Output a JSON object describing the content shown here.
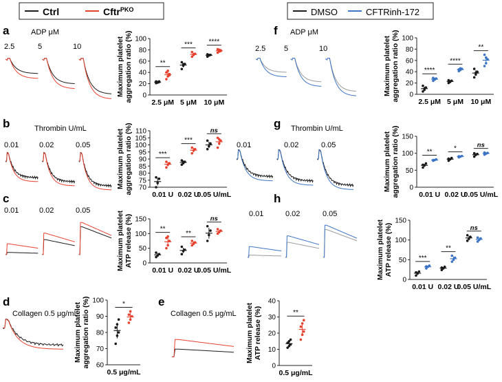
{
  "legends": {
    "left": [
      {
        "label": "Ctrl",
        "sup": "",
        "color": "#1a1a1a"
      },
      {
        "label": "Cftr",
        "sup": "PKO",
        "color": "#e8402e"
      }
    ],
    "right": [
      {
        "label": "DMSO",
        "sup": "",
        "color": "#1a1a1a"
      },
      {
        "label": "CFTRinh-172",
        "sup": "",
        "color": "#3d74c4"
      }
    ]
  },
  "colors": {
    "ctrl": "#1a1a1a",
    "treat_left": "#e8402e",
    "treat_right": "#3d74c4",
    "trace_grey": "#9a9a9a"
  },
  "panels": [
    {
      "letter": "a",
      "trace_title": "ADP μM",
      "trace_labels": [
        "2.5",
        "5",
        "10"
      ],
      "trace_kind": "aggregation",
      "treat_color": "treat_left"
    },
    {
      "letter": "b",
      "trace_title": "Thrombin U/mL",
      "trace_labels": [
        "0.01",
        "0.02",
        "0.05"
      ],
      "trace_kind": "noisy",
      "treat_color": "treat_left"
    },
    {
      "letter": "c",
      "trace_title": "",
      "trace_labels": [
        "0.01",
        "0.02",
        "0.05"
      ],
      "trace_kind": "release",
      "treat_color": "treat_left"
    },
    {
      "letter": "d",
      "trace_title": "Collagen 0.5 μg/mL",
      "trace_labels": [],
      "trace_kind": "noisy_single",
      "treat_color": "treat_left"
    },
    {
      "letter": "e",
      "trace_title": "Collagen 0.5 μg/mL",
      "trace_labels": [],
      "trace_kind": "release_single",
      "treat_color": "treat_left"
    },
    {
      "letter": "f",
      "trace_title": "ADP μM",
      "trace_labels": [
        "2.5",
        "5",
        "10"
      ],
      "trace_kind": "aggregation",
      "treat_color": "treat_right"
    },
    {
      "letter": "g",
      "trace_title": "Thrombin U/mL",
      "trace_labels": [
        "0.01",
        "0.02",
        "0.05"
      ],
      "trace_kind": "noisy",
      "treat_color": "treat_right"
    },
    {
      "letter": "h",
      "trace_title": "",
      "trace_labels": [
        "0.01",
        "0.02",
        "0.05"
      ],
      "trace_kind": "release",
      "treat_color": "treat_right"
    }
  ],
  "chart_data": [
    {
      "id": "a",
      "type": "scatter",
      "ylabel": [
        "Maximum platelet",
        "aggregation ratio (%)"
      ],
      "ylim": [
        0,
        100
      ],
      "yticks": [
        0,
        20,
        40,
        60,
        80,
        100
      ],
      "categories": [
        "2.5 μM",
        "5 μM",
        "10 μM"
      ],
      "treat_color": "treat_left",
      "groups": [
        {
          "ctrl": [
            21,
            22,
            23,
            24,
            23,
            24
          ],
          "treat": [
            28,
            33,
            37,
            40,
            43,
            35
          ],
          "sig": "**"
        },
        {
          "ctrl": [
            46,
            52,
            55,
            58,
            54
          ],
          "treat": [
            68,
            71,
            73,
            76,
            72
          ],
          "sig": "***"
        },
        {
          "ctrl": [
            68,
            70,
            71,
            72,
            71
          ],
          "treat": [
            75,
            77,
            79,
            81,
            80,
            78
          ],
          "sig": "****"
        }
      ]
    },
    {
      "id": "b",
      "type": "scatter",
      "ylabel": [
        "Maximum platelet",
        "aggregation ratio (%)"
      ],
      "ylim": [
        70,
        110
      ],
      "yticks": [
        70,
        75,
        80,
        85,
        90,
        95,
        100,
        105,
        110
      ],
      "categories": [
        "0.01 U",
        "0.02 U",
        "0.05 U/mL"
      ],
      "treat_color": "treat_left",
      "groups": [
        {
          "ctrl": [
            70,
            73,
            76,
            77
          ],
          "treat": [
            84,
            86,
            87,
            88
          ],
          "sig": "***"
        },
        {
          "ctrl": [
            86,
            87,
            88,
            89,
            88
          ],
          "treat": [
            94,
            96,
            97,
            98
          ],
          "sig": "***"
        },
        {
          "ctrl": [
            97,
            99,
            101,
            103
          ],
          "treat": [
            98,
            101,
            103,
            105,
            104
          ],
          "sig": "ns"
        }
      ]
    },
    {
      "id": "c",
      "type": "scatter",
      "ylabel": [
        "Maximum platelet",
        "ATP release (%)"
      ],
      "ylim": [
        0,
        150
      ],
      "yticks": [
        0,
        50,
        100,
        150
      ],
      "categories": [
        "0.01 U",
        "0.02 U",
        "0.05 U/mL"
      ],
      "treat_color": "treat_left",
      "groups": [
        {
          "ctrl": [
            20,
            25,
            30,
            35
          ],
          "treat": [
            50,
            60,
            75,
            85,
            90
          ],
          "sig": "**"
        },
        {
          "ctrl": [
            30,
            40,
            45,
            55
          ],
          "treat": [
            60,
            65,
            70,
            75
          ],
          "sig": "**"
        },
        {
          "ctrl": [
            75,
            95,
            110,
            125
          ],
          "treat": [
            100,
            105,
            110,
            115
          ],
          "sig": "ns"
        }
      ]
    },
    {
      "id": "d",
      "type": "scatter",
      "ylabel": [
        "Maximum platelet",
        "aggregation ratio (%)"
      ],
      "ylim": [
        60,
        100
      ],
      "yticks": [
        60,
        70,
        80,
        90,
        100
      ],
      "categories": [
        "0.5 μg/mL"
      ],
      "treat_color": "treat_left",
      "groups": [
        {
          "ctrl": [
            73,
            78,
            80,
            83,
            85,
            88
          ],
          "treat": [
            86,
            88,
            90,
            91,
            93
          ],
          "sig": "*"
        }
      ]
    },
    {
      "id": "e",
      "type": "scatter",
      "ylabel": [
        "Maximum platelet",
        "ATP release (%)"
      ],
      "ylim": [
        0,
        40
      ],
      "yticks": [
        0,
        10,
        20,
        30,
        40
      ],
      "categories": [
        "0.5 μg/mL"
      ],
      "treat_color": "treat_left",
      "groups": [
        {
          "ctrl": [
            11,
            12,
            13,
            14,
            15,
            16
          ],
          "treat": [
            16,
            19,
            21,
            24,
            26,
            28
          ],
          "sig": "**"
        }
      ]
    },
    {
      "id": "f",
      "type": "scatter",
      "ylabel": [
        "Maximum platelet",
        "aggregation ratio (%)"
      ],
      "ylim": [
        0,
        100
      ],
      "yticks": [
        0,
        20,
        40,
        60,
        80,
        100
      ],
      "categories": [
        "2.5 μM",
        "5 μM",
        "10 μM"
      ],
      "treat_color": "treat_right",
      "groups": [
        {
          "ctrl": [
            5,
            8,
            12,
            15,
            10
          ],
          "treat": [
            24,
            26,
            28,
            29,
            27
          ],
          "sig": "****"
        },
        {
          "ctrl": [
            20,
            22,
            24,
            25,
            23
          ],
          "treat": [
            41,
            43,
            45,
            44,
            46
          ],
          "sig": "****"
        },
        {
          "ctrl": [
            30,
            35,
            40,
            45,
            38
          ],
          "treat": [
            50,
            55,
            62,
            70,
            65
          ],
          "sig": "**"
        }
      ]
    },
    {
      "id": "g",
      "type": "scatter",
      "ylabel": [
        "Maximum platelet",
        "aggregation ratio (%)"
      ],
      "ylim": [
        0,
        150
      ],
      "yticks": [
        0,
        50,
        100,
        150
      ],
      "categories": [
        "0.01 U",
        "0.02 U",
        "0.05 U/mL"
      ],
      "treat_color": "treat_right",
      "groups": [
        {
          "ctrl": [
            58,
            64,
            70,
            66
          ],
          "treat": [
            78,
            80,
            82,
            80
          ],
          "sig": "**"
        },
        {
          "ctrl": [
            78,
            82,
            86,
            84
          ],
          "treat": [
            88,
            90,
            92,
            91
          ],
          "sig": "*"
        },
        {
          "ctrl": [
            90,
            95,
            98,
            100
          ],
          "treat": [
            96,
            99,
            101,
            102
          ],
          "sig": "ns"
        }
      ]
    },
    {
      "id": "h",
      "type": "scatter",
      "ylabel": [
        "Maximum platelet",
        "ATP release (%)"
      ],
      "ylim": [
        0,
        150
      ],
      "yticks": [
        0,
        50,
        100,
        150
      ],
      "categories": [
        "0.01 U",
        "0.02 U",
        "0.05 U/mL"
      ],
      "treat_color": "treat_right",
      "groups": [
        {
          "ctrl": [
            10,
            15,
            20,
            18
          ],
          "treat": [
            28,
            32,
            35,
            33
          ],
          "sig": "***"
        },
        {
          "ctrl": [
            24,
            28,
            32,
            30
          ],
          "treat": [
            45,
            50,
            55,
            60
          ],
          "sig": "**"
        },
        {
          "ctrl": [
            98,
            103,
            108,
            112
          ],
          "treat": [
            96,
            100,
            104,
            106
          ],
          "sig": "ns"
        }
      ]
    }
  ]
}
